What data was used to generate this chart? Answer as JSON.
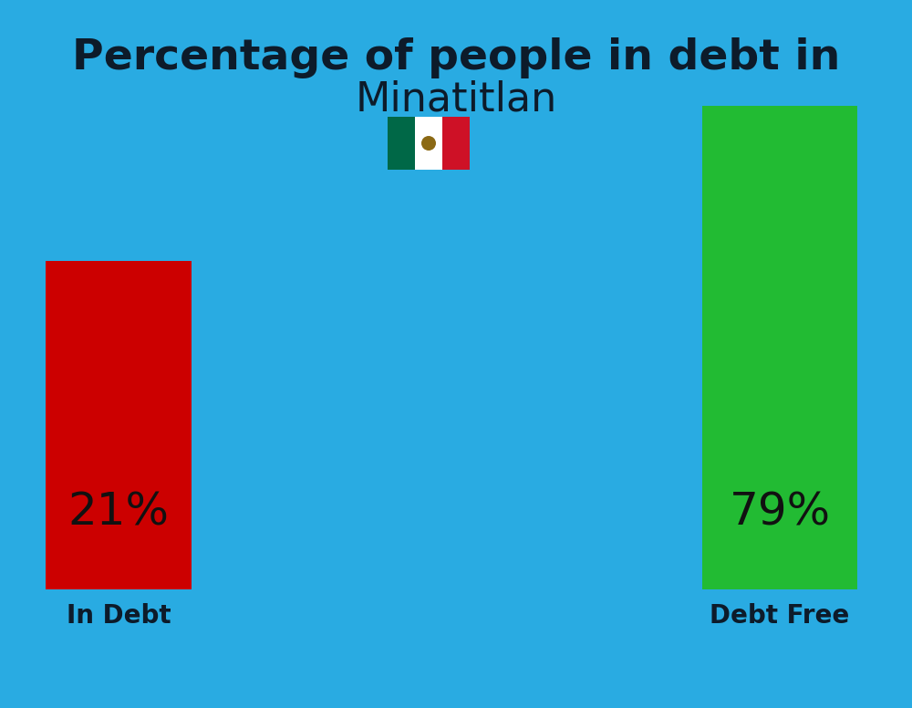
{
  "title_line1": "Percentage of people in debt in",
  "title_line2": "Minatitlan",
  "title_color": "#0d1b2a",
  "title_fontsize": 34,
  "subtitle_fontsize": 32,
  "background_color": "#29ABE2",
  "bar_in_debt_value": 21,
  "bar_debt_free_value": 79,
  "bar_in_debt_color": "#CC0000",
  "bar_debt_free_color": "#22BB33",
  "bar_label_in_debt": "In Debt",
  "bar_label_debt_free": "Debt Free",
  "pct_label_color": "#111111",
  "pct_fontsize": 36,
  "label_fontsize": 20,
  "label_color": "#0d1b2a",
  "flag_green": "#006847",
  "flag_white": "#FFFFFF",
  "flag_red": "#CE1126"
}
